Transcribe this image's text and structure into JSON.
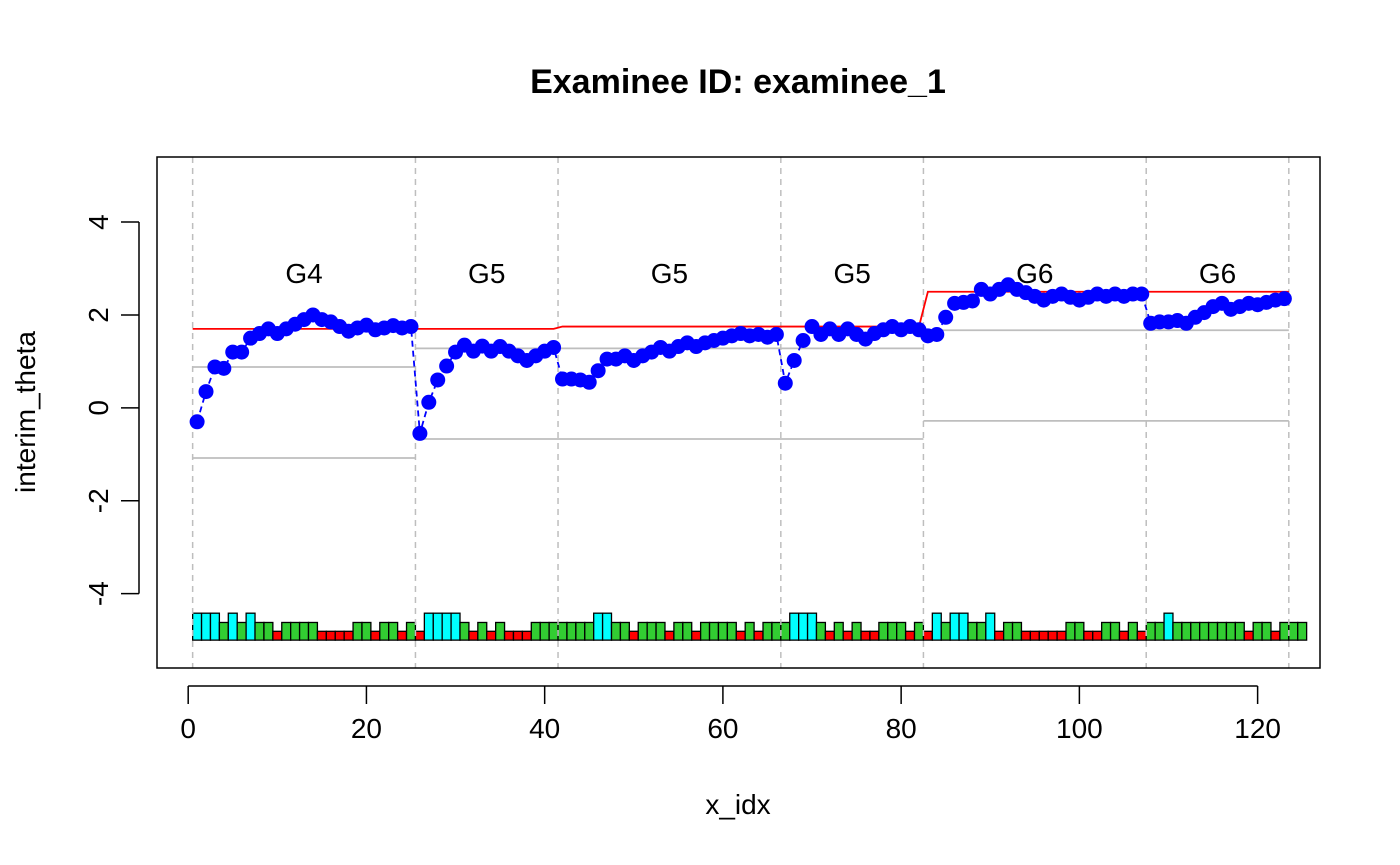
{
  "chart_data": {
    "type": "line",
    "title": "Examinee ID: examinee_1",
    "xlabel": "x_idx",
    "ylabel": "interim_theta",
    "xlim": [
      -3.5,
      127
    ],
    "ylim": [
      -5.6,
      5.4
    ],
    "xticks": [
      0,
      20,
      40,
      60,
      80,
      100,
      120
    ],
    "xtick_labels": [
      "0",
      "20",
      "40",
      "60",
      "80",
      "100",
      "120"
    ],
    "yticks": [
      -4,
      -2,
      0,
      2,
      4
    ],
    "ytick_labels": [
      "-4",
      "-2",
      "0",
      "2",
      "4"
    ],
    "grid": false,
    "module_boundaries": [
      0.5,
      25.5,
      41.5,
      66.5,
      82.5,
      107.5,
      123.5
    ],
    "module_labels": [
      {
        "label": "G4",
        "x": 13,
        "y": 2.9
      },
      {
        "label": "G5",
        "x": 33.5,
        "y": 2.9
      },
      {
        "label": "G5",
        "x": 54,
        "y": 2.9
      },
      {
        "label": "G5",
        "x": 74.5,
        "y": 2.9
      },
      {
        "label": "G6",
        "x": 95,
        "y": 2.9
      },
      {
        "label": "G6",
        "x": 115.5,
        "y": 2.9
      }
    ],
    "series": [
      {
        "color": "#0000ff",
        "style": "points-dashed",
        "x": [
          1,
          2,
          3,
          4,
          5,
          6,
          7,
          8,
          9,
          10,
          11,
          12,
          13,
          14,
          15,
          16,
          17,
          18,
          19,
          20,
          21,
          22,
          23,
          24,
          25,
          26,
          27,
          28,
          29,
          30,
          31,
          32,
          33,
          34,
          35,
          36,
          37,
          38,
          39,
          40,
          41,
          42,
          43,
          44,
          45,
          46,
          47,
          48,
          49,
          50,
          51,
          52,
          53,
          54,
          55,
          56,
          57,
          58,
          59,
          60,
          61,
          62,
          63,
          64,
          65,
          66,
          67,
          68,
          69,
          70,
          71,
          72,
          73,
          74,
          75,
          76,
          77,
          78,
          79,
          80,
          81,
          82,
          83,
          84,
          85,
          86,
          87,
          88,
          89,
          90,
          91,
          92,
          93,
          94,
          95,
          96,
          97,
          98,
          99,
          100,
          101,
          102,
          103,
          104,
          105,
          106,
          107,
          108,
          109,
          110,
          111,
          112,
          113,
          114,
          115,
          116,
          117,
          118,
          119,
          120,
          121,
          122,
          123
        ],
        "y": [
          -0.3,
          0.35,
          0.88,
          0.85,
          1.2,
          1.2,
          1.5,
          1.6,
          1.7,
          1.6,
          1.7,
          1.8,
          1.9,
          2.0,
          1.9,
          1.85,
          1.75,
          1.65,
          1.72,
          1.78,
          1.68,
          1.72,
          1.77,
          1.72,
          1.75,
          -0.55,
          0.12,
          0.6,
          0.9,
          1.2,
          1.35,
          1.22,
          1.33,
          1.22,
          1.32,
          1.22,
          1.12,
          1.02,
          1.12,
          1.22,
          1.3,
          0.62,
          0.62,
          0.6,
          0.55,
          0.8,
          1.05,
          1.05,
          1.12,
          1.02,
          1.12,
          1.2,
          1.3,
          1.22,
          1.32,
          1.4,
          1.32,
          1.4,
          1.45,
          1.5,
          1.55,
          1.6,
          1.55,
          1.58,
          1.52,
          1.58,
          0.53,
          1.02,
          1.45,
          1.75,
          1.58,
          1.7,
          1.58,
          1.7,
          1.58,
          1.48,
          1.6,
          1.68,
          1.75,
          1.68,
          1.75,
          1.68,
          1.55,
          1.58,
          1.95,
          2.25,
          2.27,
          2.3,
          2.55,
          2.45,
          2.55,
          2.65,
          2.55,
          2.48,
          2.4,
          2.32,
          2.4,
          2.45,
          2.38,
          2.32,
          2.38,
          2.45,
          2.4,
          2.45,
          2.4,
          2.45,
          2.45,
          1.82,
          1.85,
          1.85,
          1.88,
          1.82,
          1.95,
          2.05,
          2.18,
          2.25,
          2.12,
          2.18,
          2.25,
          2.22,
          2.27,
          2.32,
          2.35
        ]
      },
      {
        "color": "#ff0000",
        "style": "line",
        "x": [
          0.5,
          41,
          42,
          82,
          83,
          123.5
        ],
        "y": [
          1.7,
          1.7,
          1.75,
          1.75,
          2.5,
          2.5
        ]
      },
      {
        "color": "#bebebe",
        "style": "segments",
        "segments": [
          [
            0.5,
            25.5,
            0.88
          ],
          [
            0.5,
            25.5,
            -1.08
          ],
          [
            25.5,
            41.5,
            1.28
          ],
          [
            41.5,
            82.5,
            1.28
          ],
          [
            25.5,
            82.5,
            -0.67
          ],
          [
            82.5,
            123.5,
            1.67
          ],
          [
            82.5,
            123.5,
            -0.28
          ]
        ]
      }
    ],
    "response_bars": {
      "baseline": -5,
      "colors": {
        "correct": "#32cd32",
        "incorrect": "#ff0000",
        "highlight": "#00ffff"
      },
      "heights": {
        "correct": 0.38,
        "incorrect": 0.19,
        "highlight": 0.58
      },
      "codes": [
        "highlight",
        "highlight",
        "highlight",
        "correct",
        "highlight",
        "correct",
        "highlight",
        "correct",
        "correct",
        "incorrect",
        "correct",
        "correct",
        "correct",
        "correct",
        "incorrect",
        "incorrect",
        "incorrect",
        "incorrect",
        "correct",
        "correct",
        "incorrect",
        "correct",
        "correct",
        "incorrect",
        "correct",
        "incorrect",
        "highlight",
        "highlight",
        "highlight",
        "highlight",
        "correct",
        "incorrect",
        "correct",
        "incorrect",
        "correct",
        "incorrect",
        "incorrect",
        "incorrect",
        "correct",
        "correct",
        "correct",
        "correct",
        "correct",
        "correct",
        "correct",
        "highlight",
        "highlight",
        "correct",
        "correct",
        "incorrect",
        "correct",
        "correct",
        "correct",
        "incorrect",
        "correct",
        "correct",
        "incorrect",
        "correct",
        "correct",
        "correct",
        "correct",
        "incorrect",
        "correct",
        "incorrect",
        "correct",
        "correct",
        "correct",
        "highlight",
        "highlight",
        "highlight",
        "correct",
        "incorrect",
        "correct",
        "incorrect",
        "correct",
        "incorrect",
        "incorrect",
        "correct",
        "correct",
        "correct",
        "incorrect",
        "correct",
        "incorrect",
        "highlight",
        "correct",
        "highlight",
        "highlight",
        "correct",
        "correct",
        "highlight",
        "incorrect",
        "correct",
        "correct",
        "incorrect",
        "incorrect",
        "incorrect",
        "incorrect",
        "incorrect",
        "correct",
        "correct",
        "incorrect",
        "incorrect",
        "correct",
        "correct",
        "incorrect",
        "correct",
        "incorrect",
        "correct",
        "correct",
        "highlight",
        "correct",
        "correct",
        "correct",
        "correct",
        "correct",
        "correct",
        "correct",
        "correct",
        "incorrect",
        "correct",
        "correct",
        "incorrect",
        "correct",
        "correct",
        "correct"
      ]
    }
  }
}
